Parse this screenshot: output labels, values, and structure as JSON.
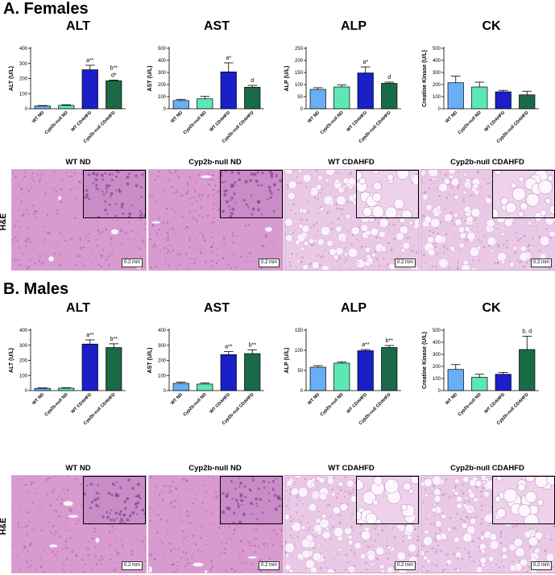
{
  "sections": [
    {
      "title": "A. Females",
      "microscopy_row_label": "H&E",
      "scale_label": "0.2 mm",
      "micrographs": [
        {
          "label": "WT ND",
          "style": "normal"
        },
        {
          "label": "Cyp2b-null ND",
          "style": "normal"
        },
        {
          "label": "WT CDAHFD",
          "style": "fatty"
        },
        {
          "label": "Cyp2b-null CDAHFD",
          "style": "fatty"
        }
      ]
    },
    {
      "title": "B. Males",
      "microscopy_row_label": "H&E",
      "scale_label": "0.2 mm",
      "micrographs": [
        {
          "label": "WT ND",
          "style": "normal"
        },
        {
          "label": "Cyp2b-null ND",
          "style": "normal"
        },
        {
          "label": "WT CDAHFD",
          "style": "fatty"
        },
        {
          "label": "Cyp2b-null CDAHFD",
          "style": "fatty"
        }
      ]
    }
  ],
  "colors": {
    "WT ND": "#6aaef5",
    "Cyp2b-null ND": "#5ce8b4",
    "WT CDAHFD": "#1a1fc8",
    "Cyp2b-null CDAHFD": "#1a6a48"
  },
  "chart_data": [
    {
      "type": "bar",
      "title": "ALT",
      "ylabel": "ALT (U/L)",
      "ylim": [
        0,
        400
      ],
      "yticks": [
        0,
        100,
        200,
        300,
        400
      ],
      "categories": [
        "WT ND",
        "Cyp2b-null ND",
        "WT CDAHFD",
        "Cyp2b-null CDAHFD"
      ],
      "values": [
        18,
        22,
        258,
        185
      ],
      "errors": [
        3,
        4,
        30,
        5
      ],
      "annotations": [
        "",
        "",
        "a**",
        "b**\nd*"
      ]
    },
    {
      "type": "bar",
      "title": "AST",
      "ylabel": "AST (U/L)",
      "ylim": [
        0,
        500
      ],
      "yticks": [
        0,
        100,
        200,
        300,
        400,
        500
      ],
      "categories": [
        "WT ND",
        "Cyp2b-null ND",
        "WT CDAHFD",
        "Cyp2b-null CDAHFD"
      ],
      "values": [
        68,
        82,
        305,
        178
      ],
      "errors": [
        10,
        20,
        75,
        15
      ],
      "annotations": [
        "",
        "",
        "a*",
        "d"
      ]
    },
    {
      "type": "bar",
      "title": "ALP",
      "ylabel": "ALP (U/L)",
      "ylim": [
        0,
        250
      ],
      "yticks": [
        0,
        50,
        100,
        150,
        200,
        250
      ],
      "categories": [
        "WT ND",
        "Cyp2b-null ND",
        "WT CDAHFD",
        "Cyp2b-null CDAHFD"
      ],
      "values": [
        80,
        90,
        148,
        105
      ],
      "errors": [
        7,
        8,
        25,
        5
      ],
      "annotations": [
        "",
        "",
        "a*",
        "d"
      ]
    },
    {
      "type": "bar",
      "title": "CK",
      "ylabel": "Creatine Kinase (U/L)",
      "ylim": [
        0,
        500
      ],
      "yticks": [
        0,
        100,
        200,
        300,
        400,
        500
      ],
      "categories": [
        "WT ND",
        "Cyp2b-null ND",
        "WT CDAHFD",
        "Cyp2b-null CDAHFD"
      ],
      "values": [
        215,
        180,
        140,
        115
      ],
      "errors": [
        55,
        40,
        12,
        30
      ],
      "annotations": [
        "",
        "",
        "",
        ""
      ]
    },
    {
      "type": "bar",
      "title": "ALT",
      "ylabel": "ALT (U/L)",
      "ylim": [
        0,
        400
      ],
      "yticks": [
        0,
        100,
        200,
        300,
        400
      ],
      "categories": [
        "WT ND",
        "Cyp2b-null ND",
        "WT CDAHFD",
        "Cyp2b-null CDAHFD"
      ],
      "values": [
        15,
        16,
        308,
        285
      ],
      "errors": [
        3,
        3,
        28,
        25
      ],
      "annotations": [
        "",
        "",
        "a**",
        "b**"
      ]
    },
    {
      "type": "bar",
      "title": "AST",
      "ylabel": "AST (U/L)",
      "ylim": [
        0,
        400
      ],
      "yticks": [
        0,
        100,
        200,
        300,
        400
      ],
      "categories": [
        "WT ND",
        "Cyp2b-null ND",
        "WT CDAHFD",
        "Cyp2b-null CDAHFD"
      ],
      "values": [
        48,
        43,
        238,
        245
      ],
      "errors": [
        8,
        7,
        20,
        25
      ],
      "annotations": [
        "",
        "",
        "a**",
        "b**"
      ]
    },
    {
      "type": "bar",
      "title": "ALP",
      "ylabel": "ALP (U/L)",
      "ylim": [
        0,
        150
      ],
      "yticks": [
        0,
        50,
        100,
        150
      ],
      "categories": [
        "WT ND",
        "Cyp2b-null ND",
        "WT CDAHFD",
        "Cyp2b-null CDAHFD"
      ],
      "values": [
        58,
        68,
        99,
        107
      ],
      "errors": [
        4,
        3,
        3,
        5
      ],
      "annotations": [
        "",
        "",
        "a**",
        "b**"
      ]
    },
    {
      "type": "bar",
      "title": "CK",
      "ylabel": "Creatine Kinase (U/L)",
      "ylim": [
        0,
        500
      ],
      "yticks": [
        0,
        100,
        200,
        300,
        400,
        500
      ],
      "categories": [
        "WT ND",
        "Cyp2b-null ND",
        "WT CDAHFD",
        "Cyp2b-null CDAHFD"
      ],
      "values": [
        175,
        110,
        135,
        340
      ],
      "errors": [
        40,
        25,
        15,
        110
      ],
      "annotations": [
        "",
        "",
        "",
        "b, d"
      ]
    }
  ]
}
